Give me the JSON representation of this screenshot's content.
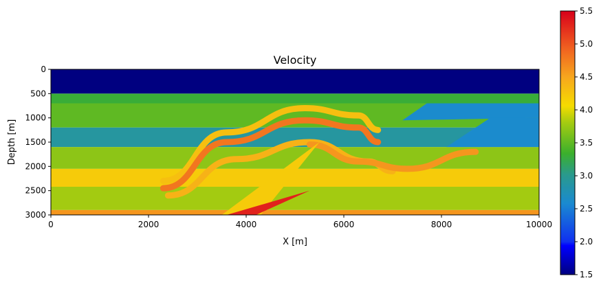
{
  "chart_data": {
    "type": "heatmap",
    "title": "Velocity",
    "xlabel": "X [m]",
    "ylabel": "Depth [m]",
    "xlim": [
      0,
      10000
    ],
    "ylim": [
      3000,
      0
    ],
    "x_ticks": [
      "0",
      "2000",
      "4000",
      "6000",
      "8000",
      "10000"
    ],
    "y_ticks": [
      "0",
      "500",
      "1000",
      "1500",
      "2000",
      "2500",
      "3000"
    ],
    "colorbar": {
      "colormap": "jet",
      "range": [
        1.5,
        5.5
      ],
      "ticks": [
        "1.5",
        "2.0",
        "2.5",
        "3.0",
        "3.5",
        "4.0",
        "4.5",
        "5.0",
        "5.5"
      ]
    },
    "water_layer": {
      "depth_bottom": 500,
      "value": 1.5
    },
    "layers": [
      {
        "x": [
          0,
          10000
        ],
        "depth_top": [
          500,
          500
        ],
        "depth_bottom": [
          700,
          700
        ],
        "value": 3.3
      },
      {
        "x": [
          0,
          10000
        ],
        "depth_top": [
          700,
          700
        ],
        "depth_bottom": [
          1200,
          1200
        ],
        "value": 3.5
      },
      {
        "x": [
          0,
          10000
        ],
        "depth_top": [
          1200,
          1200
        ],
        "depth_bottom": [
          1600,
          1600
        ],
        "value": 2.9
      },
      {
        "x": [
          0,
          10000
        ],
        "depth_top": [
          1600,
          1600
        ],
        "depth_bottom": [
          2050,
          2050
        ],
        "value": 3.7
      },
      {
        "x": [
          0,
          10000
        ],
        "depth_top": [
          2050,
          2050
        ],
        "depth_bottom": [
          2420,
          2420
        ],
        "value": 4.2
      },
      {
        "x": [
          0,
          10000
        ],
        "depth_top": [
          2420,
          2420
        ],
        "depth_bottom": [
          2900,
          2900
        ],
        "value": 3.8
      },
      {
        "x": [
          0,
          10000
        ],
        "depth_top": [
          2900,
          2900
        ],
        "depth_bottom": [
          3000,
          3000
        ],
        "value": 4.6
      }
    ],
    "fold_bands": [
      {
        "x": [
          2300,
          3600,
          5200,
          6300,
          6700
        ],
        "depth": [
          2300,
          1300,
          800,
          950,
          1250
        ],
        "value": 4.3
      },
      {
        "x": [
          2300,
          3600,
          5200,
          6300,
          6700
        ],
        "depth": [
          2450,
          1500,
          1050,
          1200,
          1500
        ],
        "value": 4.8
      },
      {
        "x": [
          2400,
          3800,
          5300,
          6500,
          7000
        ],
        "depth": [
          2600,
          1850,
          1500,
          1900,
          2100
        ],
        "value": 4.4
      },
      {
        "x": [
          5300,
          6300,
          7300,
          8700
        ],
        "depth": [
          1550,
          1900,
          2050,
          1700
        ],
        "value": 4.6
      }
    ],
    "wedges": [
      {
        "x": [
          7200,
          7700,
          10000,
          10000
        ],
        "depth": [
          1050,
          700,
          700,
          1000
        ],
        "value": 2.6
      },
      {
        "x": [
          8100,
          9000,
          10000,
          10000
        ],
        "depth": [
          1600,
          1000,
          1000,
          1600
        ],
        "value": 2.6
      },
      {
        "x": [
          3500,
          5500,
          4300,
          3900
        ],
        "depth": [
          3000,
          1500,
          3000,
          3000
        ],
        "value": 4.2
      },
      {
        "x": [
          3600,
          5300,
          4200
        ],
        "depth": [
          3000,
          2500,
          3000
        ],
        "value": 5.3
      }
    ]
  }
}
